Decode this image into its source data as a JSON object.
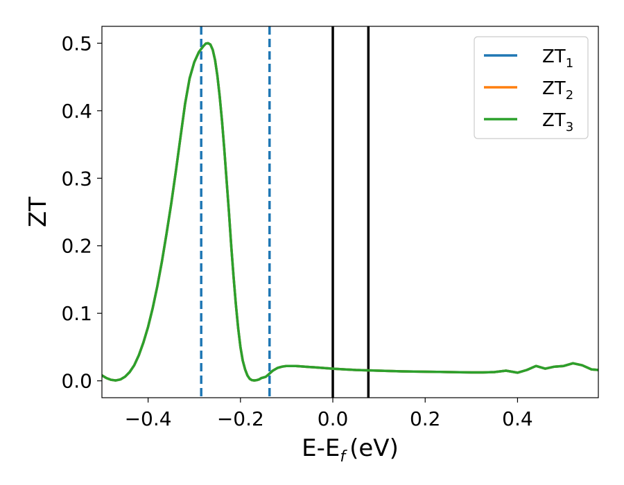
{
  "chart_data": {
    "type": "line",
    "xlabel": "E-E",
    "xlabel_sub": "f",
    "xlabel_unit": "(eV)",
    "ylabel": "ZT",
    "xlim": [
      -0.5,
      0.575
    ],
    "ylim": [
      -0.025,
      0.525
    ],
    "xticks": [
      -0.4,
      -0.2,
      0.0,
      0.2,
      0.4
    ],
    "xtick_labels": [
      "−0.4",
      "−0.2",
      "0.0",
      "0.2",
      "0.4"
    ],
    "yticks": [
      0.0,
      0.1,
      0.2,
      0.3,
      0.4,
      0.5
    ],
    "ytick_labels": [
      "0.0",
      "0.1",
      "0.2",
      "0.3",
      "0.4",
      "0.5"
    ],
    "grid": false,
    "legend_position": "top-right",
    "series": [
      {
        "name": "ZT",
        "sub": "1",
        "color": "#1f77b4",
        "x": [
          -0.5,
          -0.49,
          -0.48,
          -0.47,
          -0.46,
          -0.45,
          -0.44,
          -0.43,
          -0.42,
          -0.41,
          -0.4,
          -0.39,
          -0.38,
          -0.37,
          -0.36,
          -0.35,
          -0.34,
          -0.33,
          -0.32,
          -0.31,
          -0.3,
          -0.29,
          -0.28,
          -0.275,
          -0.27,
          -0.265,
          -0.26,
          -0.255,
          -0.25,
          -0.245,
          -0.24,
          -0.235,
          -0.23,
          -0.225,
          -0.22,
          -0.215,
          -0.21,
          -0.205,
          -0.2,
          -0.195,
          -0.19,
          -0.185,
          -0.18,
          -0.175,
          -0.17,
          -0.165,
          -0.16,
          -0.155,
          -0.15,
          -0.145,
          -0.14,
          -0.135,
          -0.13,
          -0.12,
          -0.11,
          -0.1,
          -0.09,
          -0.08,
          -0.07,
          -0.06,
          -0.05,
          -0.04,
          -0.03,
          -0.02,
          -0.01,
          0.0,
          0.025,
          0.05,
          0.075,
          0.1,
          0.125,
          0.15,
          0.175,
          0.2,
          0.225,
          0.25,
          0.275,
          0.3,
          0.325,
          0.35,
          0.375,
          0.4,
          0.42,
          0.44,
          0.46,
          0.48,
          0.5,
          0.52,
          0.54,
          0.56,
          0.575
        ],
        "y": [
          0.008,
          0.004,
          0.0015,
          0.0005,
          0.002,
          0.006,
          0.013,
          0.023,
          0.038,
          0.057,
          0.08,
          0.108,
          0.14,
          0.177,
          0.218,
          0.262,
          0.31,
          0.36,
          0.41,
          0.448,
          0.472,
          0.487,
          0.496,
          0.4995,
          0.5,
          0.498,
          0.49,
          0.475,
          0.452,
          0.422,
          0.385,
          0.343,
          0.297,
          0.25,
          0.2,
          0.155,
          0.113,
          0.078,
          0.05,
          0.03,
          0.017,
          0.008,
          0.003,
          0.001,
          0.0005,
          0.001,
          0.002,
          0.004,
          0.005,
          0.006,
          0.009,
          0.012,
          0.015,
          0.019,
          0.021,
          0.022,
          0.022,
          0.022,
          0.0215,
          0.021,
          0.0205,
          0.02,
          0.0195,
          0.019,
          0.0185,
          0.018,
          0.017,
          0.016,
          0.0155,
          0.015,
          0.0145,
          0.014,
          0.0138,
          0.0135,
          0.0133,
          0.013,
          0.0128,
          0.0125,
          0.0125,
          0.013,
          0.015,
          0.012,
          0.016,
          0.022,
          0.018,
          0.021,
          0.022,
          0.026,
          0.023,
          0.017,
          0.016
        ]
      },
      {
        "name": "ZT",
        "sub": "2",
        "color": "#ff7f0e",
        "x": [
          -0.5,
          -0.49,
          -0.48,
          -0.47,
          -0.46,
          -0.45,
          -0.44,
          -0.43,
          -0.42,
          -0.41,
          -0.4,
          -0.39,
          -0.38,
          -0.37,
          -0.36,
          -0.35,
          -0.34,
          -0.33,
          -0.32,
          -0.31,
          -0.3,
          -0.29,
          -0.28,
          -0.275,
          -0.27,
          -0.265,
          -0.26,
          -0.255,
          -0.25,
          -0.245,
          -0.24,
          -0.235,
          -0.23,
          -0.225,
          -0.22,
          -0.215,
          -0.21,
          -0.205,
          -0.2,
          -0.195,
          -0.19,
          -0.185,
          -0.18,
          -0.175,
          -0.17,
          -0.165,
          -0.16,
          -0.155,
          -0.15,
          -0.145,
          -0.14,
          -0.135,
          -0.13,
          -0.12,
          -0.11,
          -0.1,
          -0.09,
          -0.08,
          -0.07,
          -0.06,
          -0.05,
          -0.04,
          -0.03,
          -0.02,
          -0.01,
          0.0,
          0.025,
          0.05,
          0.075,
          0.1,
          0.125,
          0.15,
          0.175,
          0.2,
          0.225,
          0.25,
          0.275,
          0.3,
          0.325,
          0.35,
          0.375,
          0.4,
          0.42,
          0.44,
          0.46,
          0.48,
          0.5,
          0.52,
          0.54,
          0.56,
          0.575
        ],
        "y": [
          0.008,
          0.004,
          0.0015,
          0.0005,
          0.002,
          0.006,
          0.013,
          0.023,
          0.038,
          0.057,
          0.08,
          0.108,
          0.14,
          0.177,
          0.218,
          0.262,
          0.31,
          0.36,
          0.41,
          0.448,
          0.472,
          0.487,
          0.496,
          0.4995,
          0.5,
          0.498,
          0.49,
          0.475,
          0.452,
          0.422,
          0.385,
          0.343,
          0.297,
          0.25,
          0.2,
          0.155,
          0.113,
          0.078,
          0.05,
          0.03,
          0.017,
          0.008,
          0.003,
          0.001,
          0.0005,
          0.001,
          0.002,
          0.004,
          0.005,
          0.006,
          0.009,
          0.012,
          0.015,
          0.019,
          0.021,
          0.022,
          0.022,
          0.022,
          0.0215,
          0.021,
          0.0205,
          0.02,
          0.0195,
          0.019,
          0.0185,
          0.018,
          0.017,
          0.016,
          0.0155,
          0.015,
          0.0145,
          0.014,
          0.0138,
          0.0135,
          0.0133,
          0.013,
          0.0128,
          0.0125,
          0.0125,
          0.013,
          0.015,
          0.012,
          0.016,
          0.022,
          0.018,
          0.021,
          0.022,
          0.026,
          0.023,
          0.017,
          0.016
        ]
      },
      {
        "name": "ZT",
        "sub": "3",
        "color": "#2ca02c",
        "x": [
          -0.5,
          -0.49,
          -0.48,
          -0.47,
          -0.46,
          -0.45,
          -0.44,
          -0.43,
          -0.42,
          -0.41,
          -0.4,
          -0.39,
          -0.38,
          -0.37,
          -0.36,
          -0.35,
          -0.34,
          -0.33,
          -0.32,
          -0.31,
          -0.3,
          -0.29,
          -0.28,
          -0.275,
          -0.27,
          -0.265,
          -0.26,
          -0.255,
          -0.25,
          -0.245,
          -0.24,
          -0.235,
          -0.23,
          -0.225,
          -0.22,
          -0.215,
          -0.21,
          -0.205,
          -0.2,
          -0.195,
          -0.19,
          -0.185,
          -0.18,
          -0.175,
          -0.17,
          -0.165,
          -0.16,
          -0.155,
          -0.15,
          -0.145,
          -0.14,
          -0.135,
          -0.13,
          -0.12,
          -0.11,
          -0.1,
          -0.09,
          -0.08,
          -0.07,
          -0.06,
          -0.05,
          -0.04,
          -0.03,
          -0.02,
          -0.01,
          0.0,
          0.025,
          0.05,
          0.075,
          0.1,
          0.125,
          0.15,
          0.175,
          0.2,
          0.225,
          0.25,
          0.275,
          0.3,
          0.325,
          0.35,
          0.375,
          0.4,
          0.42,
          0.44,
          0.46,
          0.48,
          0.5,
          0.52,
          0.54,
          0.56,
          0.575
        ],
        "y": [
          0.008,
          0.004,
          0.0015,
          0.0005,
          0.002,
          0.006,
          0.013,
          0.023,
          0.038,
          0.057,
          0.08,
          0.108,
          0.14,
          0.177,
          0.218,
          0.262,
          0.31,
          0.36,
          0.41,
          0.448,
          0.472,
          0.487,
          0.496,
          0.4995,
          0.5,
          0.498,
          0.49,
          0.475,
          0.452,
          0.422,
          0.385,
          0.343,
          0.297,
          0.25,
          0.2,
          0.155,
          0.113,
          0.078,
          0.05,
          0.03,
          0.017,
          0.008,
          0.003,
          0.001,
          0.0005,
          0.001,
          0.002,
          0.004,
          0.005,
          0.006,
          0.009,
          0.012,
          0.015,
          0.019,
          0.021,
          0.022,
          0.022,
          0.022,
          0.0215,
          0.021,
          0.0205,
          0.02,
          0.0195,
          0.019,
          0.0185,
          0.018,
          0.017,
          0.016,
          0.0155,
          0.015,
          0.0145,
          0.014,
          0.0138,
          0.0135,
          0.0133,
          0.013,
          0.0128,
          0.0125,
          0.0125,
          0.013,
          0.015,
          0.012,
          0.016,
          0.022,
          0.018,
          0.021,
          0.022,
          0.026,
          0.023,
          0.017,
          0.016
        ]
      }
    ],
    "vlines": [
      {
        "x": -0.285,
        "color": "#1f77b4",
        "style": "dashed"
      },
      {
        "x": -0.137,
        "color": "#1f77b4",
        "style": "dashed"
      },
      {
        "x": 0.0,
        "color": "#000000",
        "style": "solid"
      },
      {
        "x": 0.077,
        "color": "#000000",
        "style": "solid"
      }
    ]
  }
}
